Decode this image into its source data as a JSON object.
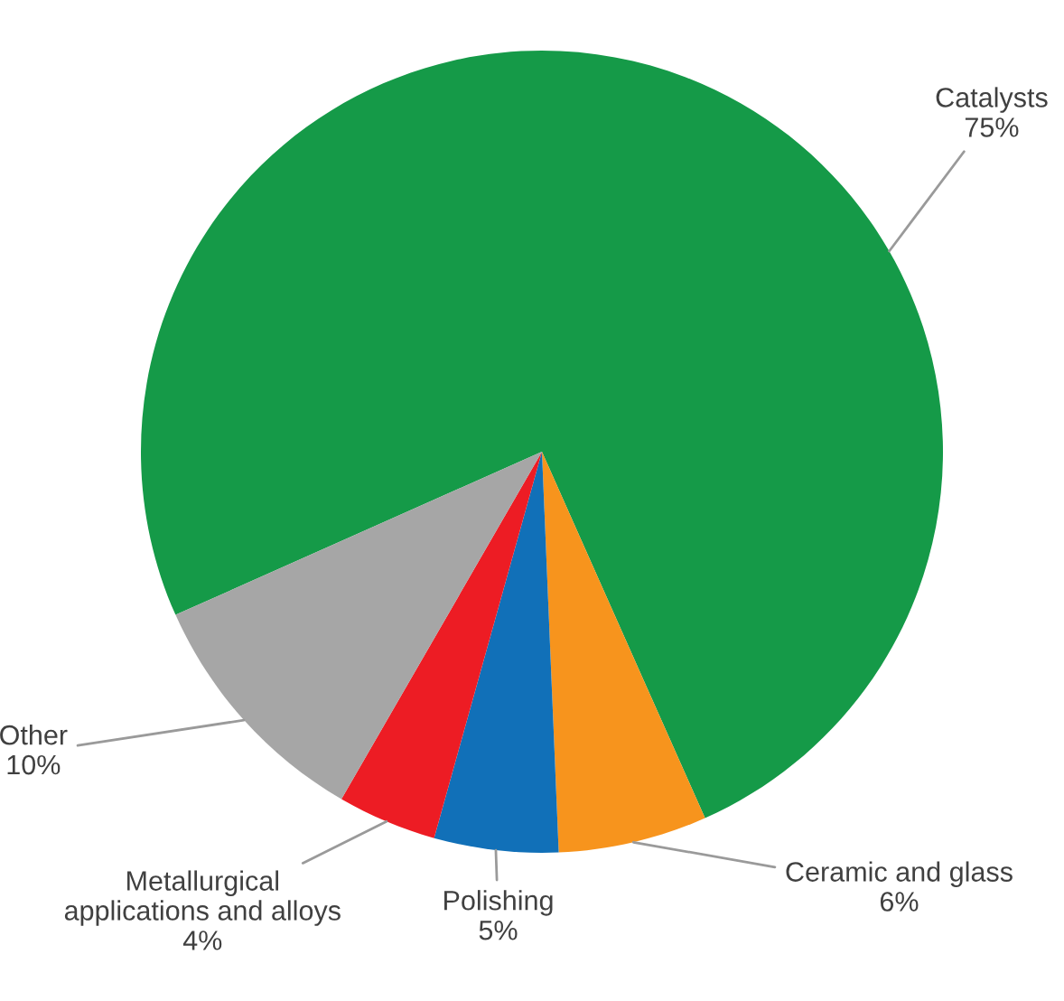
{
  "chart_data": {
    "type": "pie",
    "categories": [
      "Catalysts",
      "Ceramic and glass",
      "Polishing",
      "Metallurgical\napplications and alloys",
      "Other"
    ],
    "values": [
      75,
      6,
      5,
      4,
      10
    ],
    "colors": [
      "#159a48",
      "#f7941d",
      "#1170b8",
      "#ed1c24",
      "#a6a6a6"
    ],
    "value_labels": [
      "75%",
      "6%",
      "5%",
      "4%",
      "10%"
    ]
  }
}
